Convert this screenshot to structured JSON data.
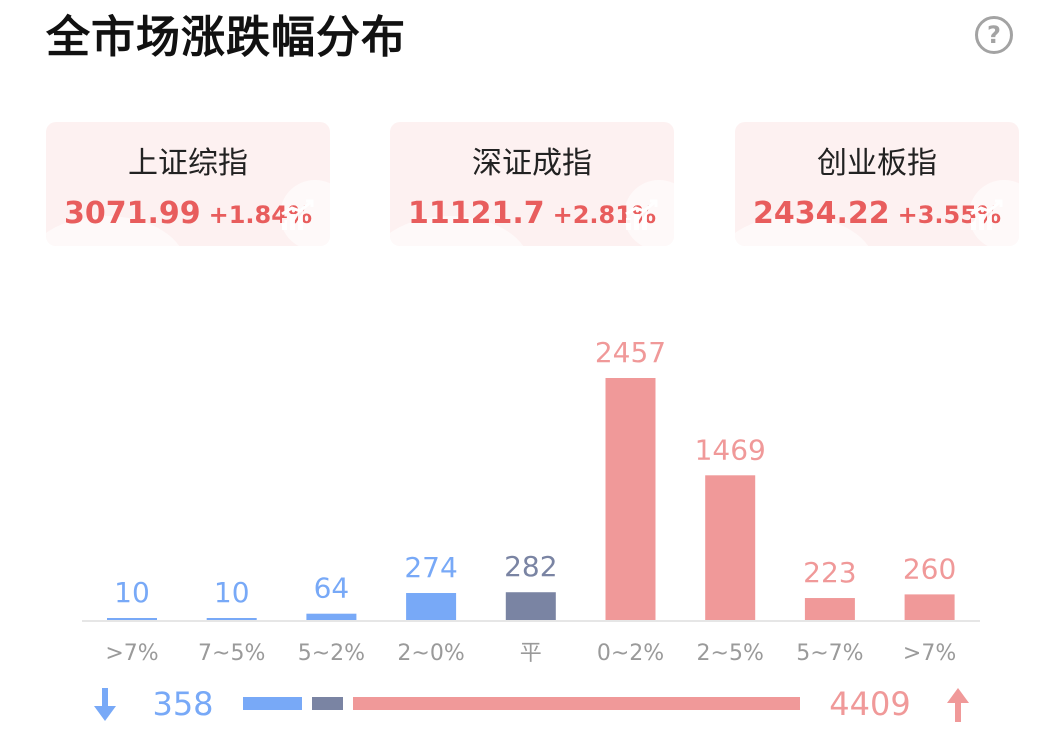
{
  "page": {
    "title": "全市场涨跌幅分布"
  },
  "indices": [
    {
      "name": "上证综指",
      "value": "3071.99",
      "change": "+1.84%"
    },
    {
      "name": "深证成指",
      "value": "11121.7",
      "change": "+2.81%"
    },
    {
      "name": "创业板指",
      "value": "2434.22",
      "change": "+3.55%"
    }
  ],
  "colors": {
    "down": "#78a9f7",
    "flat": "#7a84a3",
    "up": "#f09999",
    "up_text": "#e85d5d"
  },
  "chart_data": {
    "type": "bar",
    "categories": [
      ">7%",
      "7~5%",
      "5~2%",
      "2~0%",
      "平",
      "0~2%",
      "2~5%",
      "5~7%",
      ">7%"
    ],
    "values": [
      10,
      10,
      64,
      274,
      282,
      2457,
      1469,
      223,
      260
    ],
    "groups": [
      "down",
      "down",
      "down",
      "down",
      "flat",
      "up",
      "up",
      "up",
      "up"
    ],
    "ylim": [
      0,
      2457
    ]
  },
  "summary": {
    "down_total": "358",
    "up_total": "4409"
  }
}
